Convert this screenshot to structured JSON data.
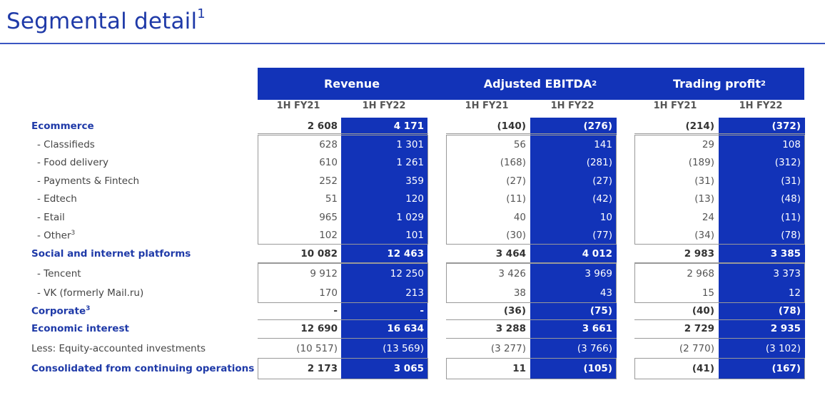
{
  "title": "Segmental detail",
  "title_sup": "1",
  "headers": {
    "revenue": "Revenue",
    "ebitda": "Adjusted EBITDA",
    "ebitda_sup": "2",
    "trading": "Trading profit",
    "trading_sup": "2",
    "period_prev": "1H FY21",
    "period_curr": "1H FY22"
  },
  "rows": [
    {
      "label": "Ecommerce",
      "bold": true,
      "vals": [
        "2 608",
        "4 171",
        "(140)",
        "(276)",
        "(214)",
        "(372)"
      ]
    },
    {
      "label": "- Classifieds",
      "vals": [
        "628",
        "1 301",
        "56",
        "141",
        "29",
        "108"
      ]
    },
    {
      "label": "- Food delivery",
      "vals": [
        "610",
        "1 261",
        "(168)",
        "(281)",
        "(189)",
        "(312)"
      ]
    },
    {
      "label": "- Payments & Fintech",
      "vals": [
        "252",
        "359",
        "(27)",
        "(27)",
        "(31)",
        "(31)"
      ]
    },
    {
      "label": "- Edtech",
      "vals": [
        "51",
        "120",
        "(11)",
        "(42)",
        "(13)",
        "(48)"
      ]
    },
    {
      "label": "- Etail",
      "vals": [
        "965",
        "1 029",
        "40",
        "10",
        "24",
        "(11)"
      ]
    },
    {
      "label": "- Other",
      "sup": "3",
      "vals": [
        "102",
        "101",
        "(30)",
        "(77)",
        "(34)",
        "(78)"
      ]
    },
    {
      "label": "Social and internet platforms",
      "bold": true,
      "vals": [
        "10 082",
        "12 463",
        "3 464",
        "4 012",
        "2 983",
        "3 385"
      ]
    },
    {
      "label": "- Tencent",
      "vals": [
        "9 912",
        "12 250",
        "3 426",
        "3 969",
        "2 968",
        "3 373"
      ]
    },
    {
      "label": "- VK (formerly Mail.ru)",
      "vals": [
        "170",
        "213",
        "38",
        "43",
        "15",
        "12"
      ]
    },
    {
      "label": "Corporate",
      "sup": "3",
      "bold": true,
      "vals": [
        "-",
        "-",
        "(36)",
        "(75)",
        "(40)",
        "(78)"
      ]
    },
    {
      "label": "Economic interest",
      "bold": true,
      "vals": [
        "12 690",
        "16 634",
        "3 288",
        "3 661",
        "2 729",
        "2 935"
      ]
    },
    {
      "label": "Less: Equity-accounted investments",
      "vals": [
        "(10 517)",
        "(13 569)",
        "(3 277)",
        "(3 766)",
        "(2 770)",
        "(3 102)"
      ]
    },
    {
      "label": "Consolidated from continuing operations",
      "bold": true,
      "vals": [
        "2 173",
        "3 065",
        "11",
        "(105)",
        "(41)",
        "(167)"
      ]
    }
  ]
}
